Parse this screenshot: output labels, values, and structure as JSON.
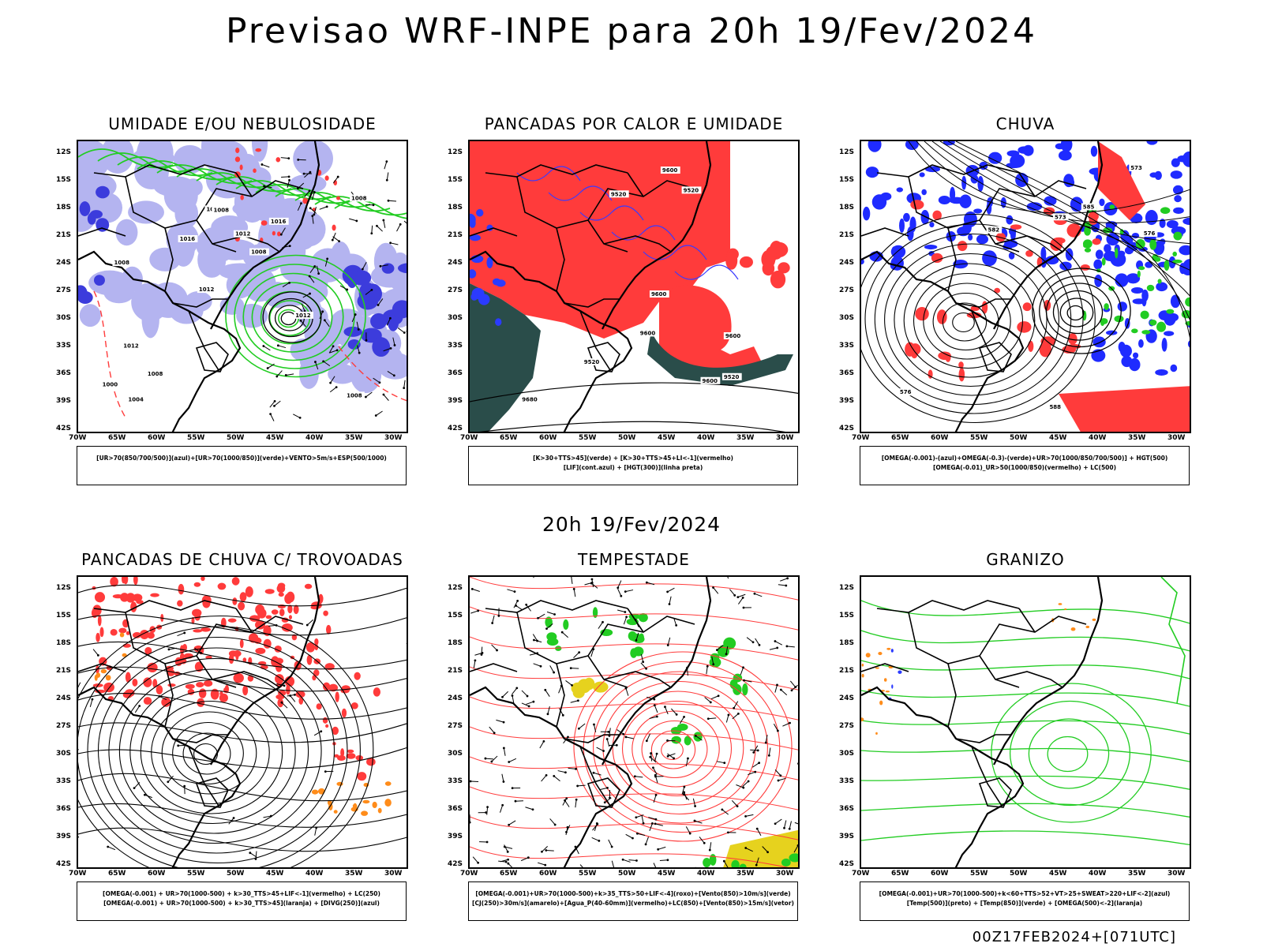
{
  "header": {
    "title": "Previsao WRF-INPE  para 20h 19/Fev/2024"
  },
  "mid_title": "20h 19/Fev/2024",
  "footer": "00Z17FEB2024+[071UTC]",
  "axes": {
    "lat_labels": [
      "12S",
      "15S",
      "18S",
      "21S",
      "24S",
      "27S",
      "30S",
      "33S",
      "36S",
      "39S",
      "42S"
    ],
    "lon_labels": [
      "70W",
      "65W",
      "60W",
      "55W",
      "50W",
      "45W",
      "40W",
      "35W",
      "30W"
    ]
  },
  "colors": {
    "blue": "#1a1aff",
    "green": "#22cc22",
    "red": "#ff3b3b",
    "lavender": "#b4b4f0",
    "darkblue": "#3c3cdc",
    "darkteal": "#2a4d4a",
    "orange": "#ff8c1a",
    "yellow": "#e6d21e"
  },
  "panels": [
    {
      "id": "umidade",
      "title": "UMIDADE E/OU NEBULOSIDADE",
      "legend": [
        "[UR>70(850/700/500)](azul)+[UR>70(1000/850)](verde)+VENTO>5m/s+ESP(500/1000)"
      ],
      "contour_labels": [
        "1008",
        "1008",
        "1008",
        "1012",
        "1016",
        "1004",
        "1008",
        "1012",
        "1012",
        "1016",
        "1000",
        "1008",
        "1008",
        "1008",
        "1012"
      ]
    },
    {
      "id": "pancadas-calor",
      "title": "PANCADAS POR CALOR E UMIDADE",
      "legend": [
        "[K>30+TTS>45](verde) + [K>30+TTS>45+LI<-1](vermelho)",
        "[LIF](cont.azul) + [HGT(300)](linha preta)"
      ],
      "contour_labels": [
        "9680",
        "9600",
        "9600",
        "9600",
        "9520",
        "9600",
        "9520",
        "9520",
        "9600",
        "9520"
      ]
    },
    {
      "id": "chuva",
      "title": "CHUVA",
      "legend": [
        "[OMEGA(-0.001)-(azul)+OMEGA(-0.3)-(verde)+UR>70(1000/850/700/500)] + HGT(500)",
        "[OMEGA(-0.01)_UR>50(1000/850)(vermelho) + LC(500)"
      ],
      "contour_labels": [
        "588",
        "582",
        "576",
        "573",
        "576",
        "573",
        "585"
      ]
    },
    {
      "id": "trovoadas",
      "title": "PANCADAS DE CHUVA C/ TROVOADAS",
      "legend": [
        "[OMEGA(-0.001) + UR>70(1000-500) + k>30_TTS>45+LIF<-1](vermelho) + LC(250)",
        "[OMEGA(-0.001) + UR>70(1000-500) + k>30_TTS>45](laranja) + [DIVG(250)](azul)"
      ],
      "contour_labels": []
    },
    {
      "id": "tempestade",
      "title": "TEMPESTADE",
      "legend": [
        "[OMEGA(-0.001)+UR>70(1000-500)+k>35_TTS>50+LIF<-4](roxo)+[Vento(850)>10m/s](verde)",
        "[CJ(250)>30m/s](amarelo)+[Agua_P(40-60mm)](vermelho)+LC(850)+[Vento(850)>15m/s](vetor)"
      ],
      "contour_labels": []
    },
    {
      "id": "granizo",
      "title": "GRANIZO",
      "legend": [
        "[OMEGA(-0.001)+UR>70(1000-500)+k<60+TTS>52+VT>25+SWEAT>220+LIF<-2](azul)",
        "[Temp(500)](preto) + [Temp(850)](verde) + [OMEGA(500)<-2](laranja)"
      ],
      "contour_labels": []
    }
  ]
}
